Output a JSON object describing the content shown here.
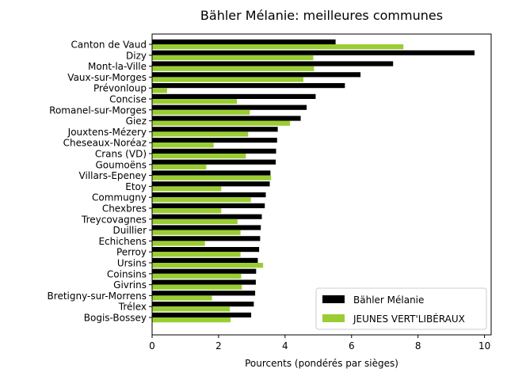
{
  "chart_data": {
    "type": "bar",
    "orientation": "horizontal",
    "title": "Bähler Mélanie: meilleures communes",
    "xlabel": "Pourcents (pondérés par sièges)",
    "ylabel": "",
    "xlim": [
      0,
      10.2
    ],
    "xticks": [
      0,
      2,
      4,
      6,
      8,
      10
    ],
    "grid": false,
    "legend_position": "lower right",
    "categories": [
      "Canton de Vaud",
      "Dizy",
      "Mont-la-Ville",
      "Vaux-sur-Morges",
      "Prévonloup",
      "Concise",
      "Romanel-sur-Morges",
      "Giez",
      "Jouxtens-Mézery",
      "Cheseaux-Noréaz",
      "Crans (VD)",
      "Goumoëns",
      "Villars-Epeney",
      "Etoy",
      "Commugny",
      "Chexbres",
      "Treycovagnes",
      "Duillier",
      "Echichens",
      "Perroy",
      "Ursins",
      "Coinsins",
      "Givrins",
      "Bretigny-sur-Morrens",
      "Trélex",
      "Bogis-Bossey"
    ],
    "series": [
      {
        "name": "Bähler Mélanie",
        "color": "#000000",
        "values": [
          5.52,
          9.7,
          7.25,
          6.27,
          5.8,
          4.92,
          4.65,
          4.47,
          3.78,
          3.76,
          3.73,
          3.72,
          3.56,
          3.54,
          3.42,
          3.39,
          3.3,
          3.27,
          3.25,
          3.22,
          3.18,
          3.13,
          3.12,
          3.1,
          3.06,
          2.98
        ]
      },
      {
        "name": "JEUNES VERT'LIBÉRAUX",
        "color": "#9acd32",
        "values": [
          7.56,
          4.85,
          4.87,
          4.55,
          0.45,
          2.55,
          2.94,
          4.15,
          2.89,
          1.85,
          2.82,
          1.63,
          3.58,
          2.08,
          2.97,
          2.08,
          2.57,
          2.66,
          1.59,
          2.66,
          3.34,
          2.68,
          2.7,
          1.8,
          2.34,
          2.36
        ]
      }
    ]
  }
}
